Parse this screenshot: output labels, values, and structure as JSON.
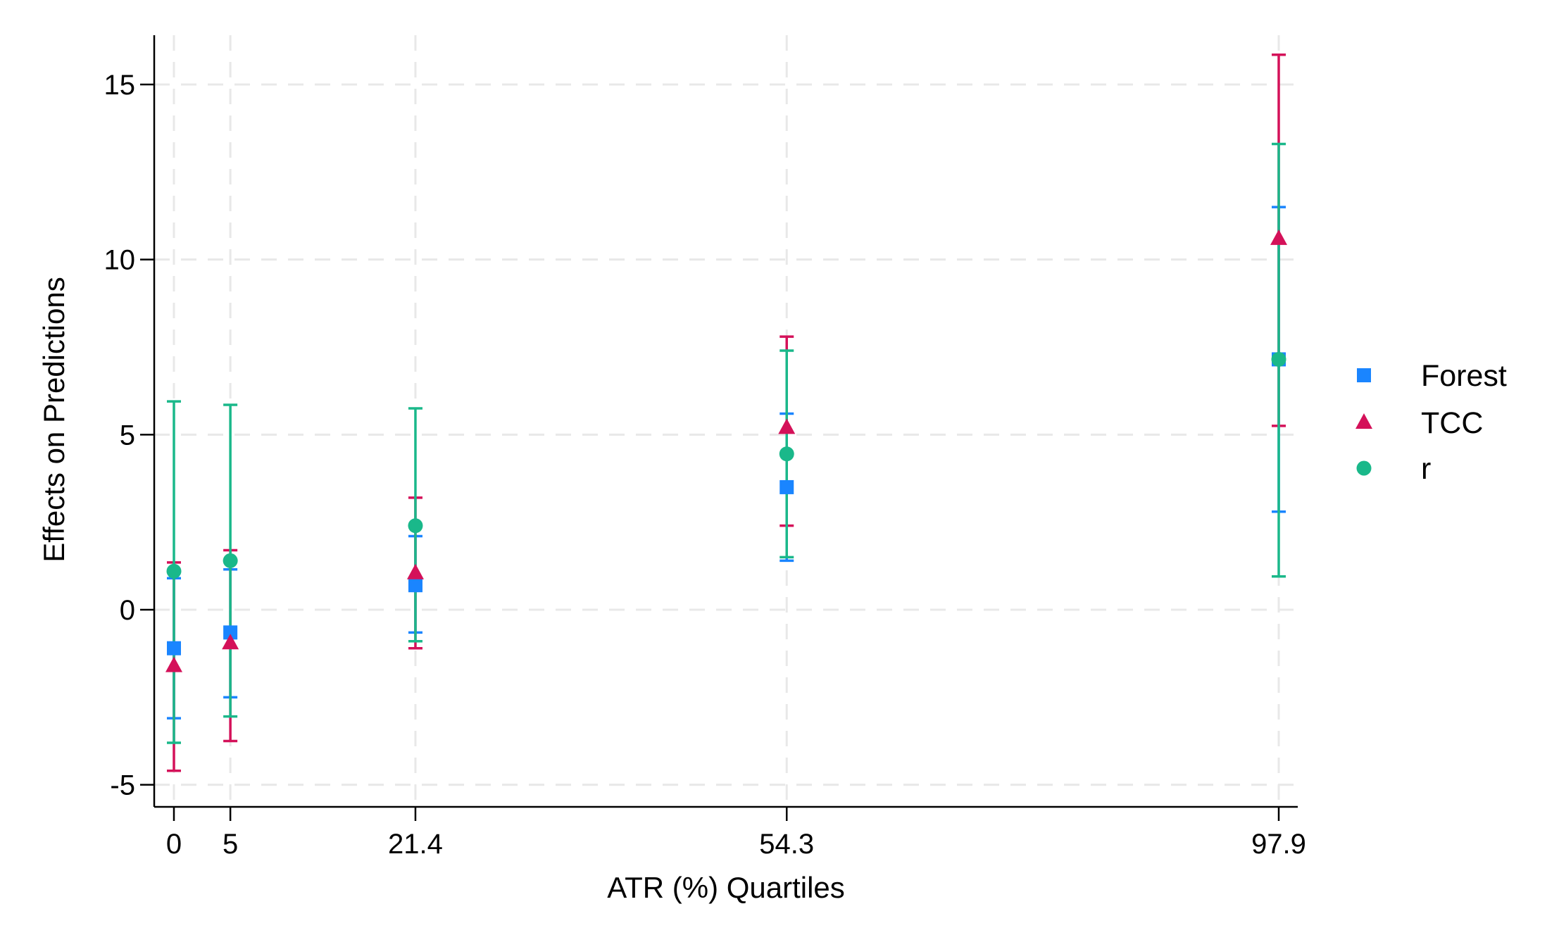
{
  "chart_data": {
    "type": "scatter",
    "title": "",
    "xlabel": "ATR (%) Quartiles",
    "ylabel": "Effects on Predictions",
    "x": [
      0,
      5,
      21.4,
      54.3,
      97.9
    ],
    "x_tick_labels": [
      "0",
      "5",
      "21.4",
      "54.3",
      "97.9"
    ],
    "y_ticks": [
      -5,
      0,
      5,
      10,
      15
    ],
    "y_tick_labels": [
      "-5",
      "0",
      "5",
      "10",
      "15"
    ],
    "ylim": [
      -5.6,
      16.4
    ],
    "xlim": [
      -2,
      100
    ],
    "grid": true,
    "legend_position": "right",
    "series": [
      {
        "name": "Forest",
        "marker": "square",
        "color": "#1a85ff",
        "values": [
          -1.1,
          -0.65,
          0.7,
          3.5,
          7.15
        ],
        "ci_low": [
          -3.1,
          -2.5,
          -0.65,
          1.4,
          2.8
        ],
        "ci_high": [
          0.9,
          1.15,
          2.1,
          5.6,
          11.5
        ]
      },
      {
        "name": "TCC",
        "marker": "triangle",
        "color": "#d41159",
        "values": [
          -1.6,
          -0.95,
          1.05,
          5.2,
          10.6
        ],
        "ci_low": [
          -4.6,
          -3.75,
          -1.1,
          2.4,
          5.25
        ],
        "ci_high": [
          1.35,
          1.7,
          3.2,
          7.8,
          15.85
        ]
      },
      {
        "name": "r",
        "marker": "circle",
        "color": "#1ab88a",
        "values": [
          1.1,
          1.4,
          2.4,
          4.45,
          7.15
        ],
        "ci_low": [
          -3.8,
          -3.05,
          -0.9,
          1.5,
          0.95
        ],
        "ci_high": [
          5.95,
          5.85,
          5.75,
          7.4,
          13.3
        ]
      }
    ]
  }
}
